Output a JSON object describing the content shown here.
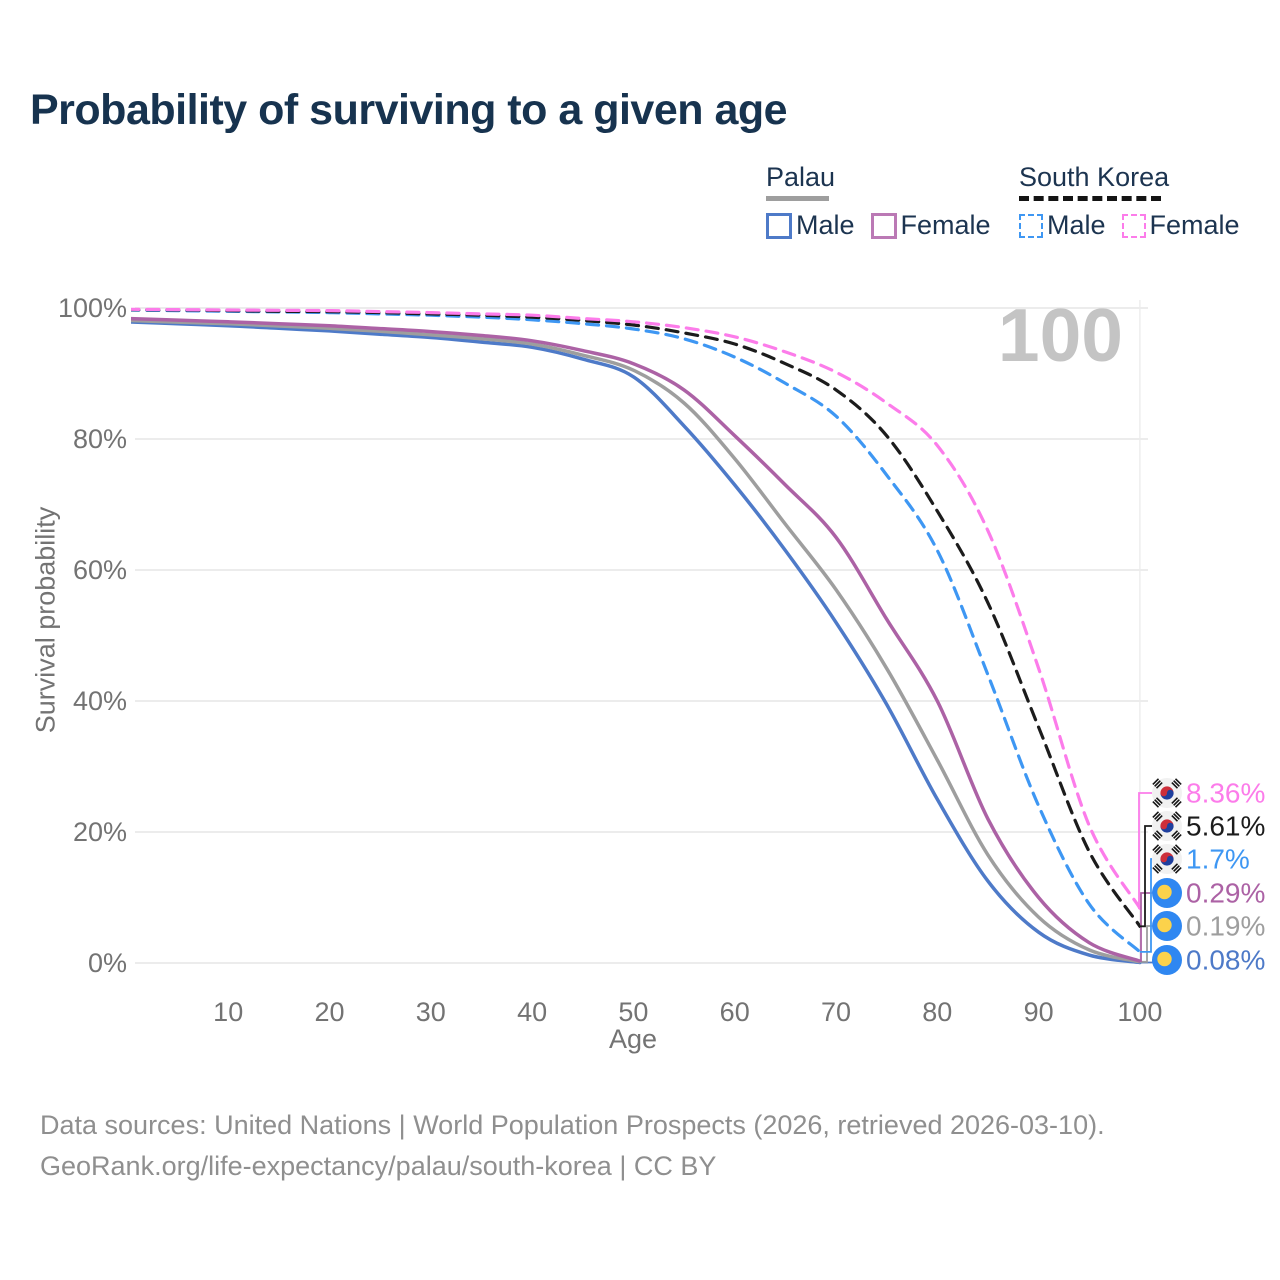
{
  "page": {
    "title": "Probability of surviving to a given age",
    "watermark": "100"
  },
  "legend": {
    "groups": [
      {
        "title": "Palau",
        "items": [
          {
            "label": "Male"
          },
          {
            "label": "Female"
          }
        ]
      },
      {
        "title": "South Korea",
        "items": [
          {
            "label": "Male"
          },
          {
            "label": "Female"
          }
        ]
      }
    ]
  },
  "chart_data": {
    "type": "line",
    "title": "Probability of surviving to a given age",
    "xlabel": "Age",
    "ylabel": "Survival probability",
    "xlim": [
      0.8,
      100.8
    ],
    "ylim": [
      0,
      100
    ],
    "grid": "horizontal",
    "legend_position": "top-right",
    "x_ticks": [
      10,
      20,
      30,
      40,
      50,
      60,
      70,
      80,
      90,
      100
    ],
    "y_tick_values": [
      0,
      20,
      40,
      60,
      80,
      100
    ],
    "y_tick_labels": [
      "0%",
      "20%",
      "40%",
      "60%",
      "80%",
      "100%"
    ],
    "ages": [
      0,
      5,
      10,
      15,
      20,
      25,
      30,
      35,
      40,
      45,
      50,
      55,
      60,
      65,
      70,
      75,
      80,
      85,
      90,
      95,
      100
    ],
    "series": [
      {
        "id": "palau-male",
        "country": "Palau",
        "legend_label": "Male",
        "line": "solid",
        "color": "#4e7ac8",
        "end_label": "0.08%",
        "values": [
          97.9,
          97.6,
          97.3,
          96.9,
          96.5,
          96.0,
          95.5,
          94.8,
          94.0,
          92.2,
          89.5,
          82.0,
          73.0,
          63.0,
          52.0,
          39.5,
          25.0,
          12.5,
          4.7,
          1.2,
          0.08
        ]
      },
      {
        "id": "palau-combined",
        "country": "Palau",
        "legend_label": "",
        "line": "solid",
        "color": "#9e9e9e",
        "end_label": "0.19%",
        "values": [
          98.1,
          97.85,
          97.6,
          97.25,
          96.9,
          96.45,
          95.9,
          95.3,
          94.5,
          92.8,
          90.5,
          85.5,
          77.0,
          67.0,
          57.0,
          45.0,
          31.0,
          16.5,
          7.0,
          2.0,
          0.19
        ]
      },
      {
        "id": "palau-female",
        "country": "Palau",
        "legend_label": "Female",
        "line": "solid",
        "color": "#ac62a5",
        "end_label": "0.29%",
        "values": [
          98.4,
          98.15,
          97.9,
          97.6,
          97.3,
          96.85,
          96.4,
          95.8,
          95.0,
          93.5,
          91.5,
          87.5,
          80.5,
          73.0,
          65.0,
          52.5,
          40.0,
          22.0,
          10.0,
          3.1,
          0.29
        ]
      },
      {
        "id": "south-korea-male",
        "country": "South Korea",
        "legend_label": "Male",
        "line": "dashed",
        "color": "#3e97f3",
        "end_label": "1.7%",
        "values": [
          99.7,
          99.6,
          99.5,
          99.4,
          99.3,
          99.1,
          98.9,
          98.6,
          98.2,
          97.6,
          96.8,
          95.3,
          92.5,
          88.5,
          83.5,
          74.5,
          63.0,
          44.0,
          24.0,
          9.0,
          1.7
        ]
      },
      {
        "id": "south-korea-combined",
        "country": "South Korea",
        "legend_label": "",
        "line": "dashed",
        "color": "#1c1c1c",
        "end_label": "5.61%",
        "values": [
          99.75,
          99.7,
          99.6,
          99.5,
          99.45,
          99.3,
          99.1,
          98.9,
          98.6,
          98.1,
          97.4,
          96.2,
          94.5,
          91.5,
          87.5,
          80.5,
          69.0,
          55.0,
          36.0,
          17.0,
          5.61
        ]
      },
      {
        "id": "south-korea-female",
        "country": "South Korea",
        "legend_label": "Female",
        "line": "dashed",
        "color": "#fc7cea",
        "end_label": "8.36%",
        "values": [
          99.8,
          99.75,
          99.7,
          99.65,
          99.6,
          99.45,
          99.3,
          99.1,
          98.9,
          98.4,
          97.9,
          97.0,
          95.6,
          93.3,
          90.2,
          85.5,
          79.0,
          66.0,
          45.0,
          21.0,
          8.36
        ]
      }
    ]
  },
  "footer": {
    "line1": "Data sources: United Nations | World Population Prospects (2026, retrieved 2026-03-10).",
    "line2": "GeoRank.org/life-expectancy/palau/south-korea | CC BY"
  }
}
